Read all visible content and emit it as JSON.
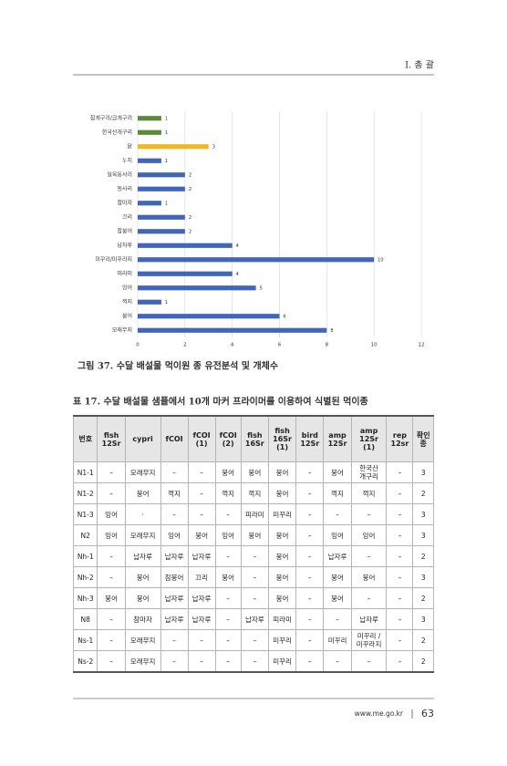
{
  "header": {
    "section": "Ⅰ. 총 괄"
  },
  "chart_data": {
    "type": "bar",
    "orientation": "horizontal",
    "categories": [
      "참개구리/금개구리",
      "한국산개구리",
      "닭",
      "누치",
      "일목동사리",
      "동사리",
      "참마자",
      "끄리",
      "참붕어",
      "납자루",
      "미꾸리/미꾸라지",
      "피라미",
      "잉어",
      "꺽지",
      "붕어",
      "모래무지"
    ],
    "values": [
      1,
      1,
      3,
      1,
      2,
      2,
      1,
      2,
      2,
      4,
      10,
      4,
      5,
      1,
      6,
      8
    ],
    "colors": [
      "#5a8a3a",
      "#5a8a3a",
      "#f2b824",
      "#3f66b8",
      "#3f66b8",
      "#3f66b8",
      "#3f66b8",
      "#3f66b8",
      "#3f66b8",
      "#3f66b8",
      "#3f66b8",
      "#3f66b8",
      "#3f66b8",
      "#3f66b8",
      "#3f66b8",
      "#3f66b8"
    ],
    "xlim": [
      0,
      12
    ],
    "xticks": [
      0,
      2,
      4,
      6,
      8,
      10,
      12
    ],
    "grid": true
  },
  "figure_caption": "그림 37. 수달 배설물 먹이원 종 유전분석 및 개체수",
  "table": {
    "title": "표 17. 수달 배설물 샘플에서 10개 마커 프라이머를 이용하여 식별된 먹이종",
    "header": [
      "번호",
      "fish\n12Sr",
      "cypri",
      "fCOI",
      "fCOI\n(1)",
      "fCOI\n(2)",
      "fish\n16Sr",
      "fish\n16Sr\n(1)",
      "bird\n12Sr",
      "amp\n12Sr",
      "amp\n12Sr\n(1)",
      "rep\n12sr",
      "확인\n종"
    ],
    "rows": [
      [
        "N1-1",
        "–",
        "모래무지",
        "–",
        "–",
        "붕어",
        "붕어",
        "붕어",
        "–",
        "붕어",
        "한국산\n개구리",
        "–",
        "3"
      ],
      [
        "N1-2",
        "–",
        "붕어",
        "꺽지",
        "–",
        "꺽지",
        "꺽지",
        "붕어",
        "–",
        "꺽지",
        "꺽지",
        "–",
        "2"
      ],
      [
        "N1-3",
        "잉어",
        "·",
        "–",
        "–",
        "–",
        "피라미",
        "미꾸리",
        "–",
        "–",
        "–",
        "–",
        "3"
      ],
      [
        "N2",
        "잉어",
        "모래무지",
        "잉어",
        "붕어",
        "잉어",
        "붕어",
        "붕어",
        "–",
        "잉어",
        "잉어",
        "–",
        "3"
      ],
      [
        "Nh-1",
        "–",
        "납자루",
        "납자루",
        "납자루",
        "–",
        "–",
        "붕어",
        "–",
        "납자루",
        "–",
        "–",
        "2"
      ],
      [
        "Nh-2",
        "–",
        "붕어",
        "참붕어",
        "끄리",
        "붕어",
        "–",
        "붕어",
        "–",
        "붕어",
        "붕어",
        "–",
        "3"
      ],
      [
        "Nh-3",
        "붕어",
        "붕어",
        "납자루",
        "납자루",
        "–",
        "–",
        "붕어",
        "–",
        "붕어",
        "–",
        "–",
        "2"
      ],
      [
        "N8",
        "–",
        "참마자",
        "납자루",
        "납자루",
        "–",
        "납자루",
        "피라미",
        "–",
        "–",
        "납자루",
        "–",
        "3"
      ],
      [
        "Ns-1",
        "–",
        "모래무지",
        "–",
        "–",
        "–",
        "–",
        "미꾸리",
        "–",
        "미꾸리",
        "미꾸리 /\n미꾸라지",
        "–",
        "2"
      ],
      [
        "Ns-2",
        "–",
        "모래무지",
        "–",
        "–",
        "–",
        "–",
        "미꾸리",
        "–",
        "–",
        "–",
        "–",
        "2"
      ]
    ]
  },
  "footer": {
    "url": "www.me.go.kr",
    "page": "63"
  }
}
